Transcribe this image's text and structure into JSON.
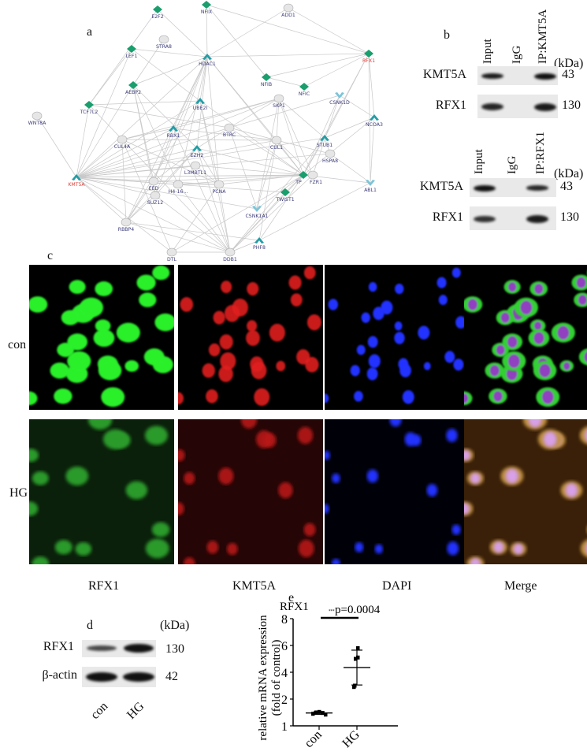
{
  "panel_a": {
    "label": "a",
    "legend_colors": {
      "transcription_factor": "#1a9e6e",
      "up": "#1f9ea8",
      "down": "#7cc4d8",
      "other": "#e6e6e6",
      "highlight_label": "#e0403a",
      "label": "#3b3b7a",
      "edge": "#c8c8c8"
    },
    "nodes": [
      {
        "id": "E2F2",
        "shape": "diamond"
      },
      {
        "id": "NFIX",
        "shape": "diamond"
      },
      {
        "id": "ADD1",
        "shape": "ellipse"
      },
      {
        "id": "STRA8",
        "shape": "ellipse"
      },
      {
        "id": "LEF1",
        "shape": "diamond"
      },
      {
        "id": "HDAC1",
        "shape": "chevron-up"
      },
      {
        "id": "RFX1",
        "shape": "diamond",
        "highlight": true
      },
      {
        "id": "NFIB",
        "shape": "diamond"
      },
      {
        "id": "NFIC",
        "shape": "diamond"
      },
      {
        "id": "AEBP2",
        "shape": "diamond"
      },
      {
        "id": "CSNK1D",
        "shape": "chevron-down"
      },
      {
        "id": "UBE2I",
        "shape": "chevron-up"
      },
      {
        "id": "TCF7L2",
        "shape": "diamond"
      },
      {
        "id": "WNT8A",
        "shape": "ellipse"
      },
      {
        "id": "NCOA3",
        "shape": "chevron-up"
      },
      {
        "id": "SKP1",
        "shape": "ellipse"
      },
      {
        "id": "RBX1",
        "shape": "chevron-up"
      },
      {
        "id": "BTRC",
        "shape": "ellipse"
      },
      {
        "id": "CUL4A",
        "shape": "ellipse"
      },
      {
        "id": "STUB1",
        "shape": "chevron-up"
      },
      {
        "id": "CUL1",
        "shape": "ellipse"
      },
      {
        "id": "EZH2",
        "shape": "chevron-up"
      },
      {
        "id": "HSPA8",
        "shape": "ellipse"
      },
      {
        "id": "L3MBTL1",
        "shape": "ellipse"
      },
      {
        "id": "KMT5A",
        "shape": "chevron-up",
        "highlight": true
      },
      {
        "id": "TP",
        "shape": "diamond"
      },
      {
        "id": "FZR1",
        "shape": "ellipse"
      },
      {
        "id": "ABL1",
        "shape": "chevron-down"
      },
      {
        "id": "EED",
        "shape": "ellipse"
      },
      {
        "id": "H4-16...",
        "shape": "ellipse"
      },
      {
        "id": "PCNA",
        "shape": "ellipse"
      },
      {
        "id": "SUZ12",
        "shape": "ellipse"
      },
      {
        "id": "TWIST1",
        "shape": "diamond"
      },
      {
        "id": "CSNK1A1",
        "shape": "chevron-down"
      },
      {
        "id": "RBBP4",
        "shape": "ellipse"
      },
      {
        "id": "PHF8",
        "shape": "chevron-up"
      },
      {
        "id": "DTL",
        "shape": "ellipse"
      },
      {
        "id": "DDB1",
        "shape": "ellipse"
      }
    ],
    "edges": [
      [
        "KMT5A",
        "WNT8A"
      ],
      [
        "KMT5A",
        "TCF7L2"
      ],
      [
        "KMT5A",
        "LEF1"
      ],
      [
        "KMT5A",
        "AEBP2"
      ],
      [
        "KMT5A",
        "CUL4A"
      ],
      [
        "KMT5A",
        "RBX1"
      ],
      [
        "KMT5A",
        "UBE2I"
      ],
      [
        "KMT5A",
        "EZH2"
      ],
      [
        "KMT5A",
        "L3MBTL1"
      ],
      [
        "KMT5A",
        "EED"
      ],
      [
        "KMT5A",
        "H4-16..."
      ],
      [
        "KMT5A",
        "PCNA"
      ],
      [
        "KMT5A",
        "SUZ12"
      ],
      [
        "KMT5A",
        "RBBP4"
      ],
      [
        "KMT5A",
        "DTL"
      ],
      [
        "KMT5A",
        "DDB1"
      ],
      [
        "KMT5A",
        "TP"
      ],
      [
        "KMT5A",
        "FZR1"
      ],
      [
        "KMT5A",
        "CUL1"
      ],
      [
        "KMT5A",
        "SKP1"
      ],
      [
        "KMT5A",
        "BTRC"
      ],
      [
        "KMT5A",
        "HDAC1"
      ],
      [
        "KMT5A",
        "CSNK1A1"
      ],
      [
        "KMT5A",
        "TWIST1"
      ],
      [
        "KMT5A",
        "HSPA8"
      ],
      [
        "KMT5A",
        "STUB1"
      ],
      [
        "E2F2",
        "HDAC1"
      ],
      [
        "E2F2",
        "TCF7L2"
      ],
      [
        "NFIX",
        "HDAC1"
      ],
      [
        "NFIX",
        "RFX1"
      ],
      [
        "NFIX",
        "NFIB"
      ],
      [
        "ADD1",
        "HDAC1"
      ],
      [
        "ADD1",
        "RFX1"
      ],
      [
        "STRA8",
        "AEBP2"
      ],
      [
        "LEF1",
        "HDAC1"
      ],
      [
        "LEF1",
        "UBE2I"
      ],
      [
        "LEF1",
        "TCF7L2"
      ],
      [
        "RFX1",
        "HDAC1"
      ],
      [
        "RFX1",
        "NFIB"
      ],
      [
        "RFX1",
        "NFIC"
      ],
      [
        "RFX1",
        "NCOA3"
      ],
      [
        "RFX1",
        "STUB1"
      ],
      [
        "RFX1",
        "ABL1"
      ],
      [
        "RFX1",
        "TP"
      ],
      [
        "NFIB",
        "NFIC"
      ],
      [
        "AEBP2",
        "HDAC1"
      ],
      [
        "AEBP2",
        "EED"
      ],
      [
        "AEBP2",
        "SUZ12"
      ],
      [
        "AEBP2",
        "EZH2"
      ],
      [
        "AEBP2",
        "H4-16..."
      ],
      [
        "TCF7L2",
        "CUL4A"
      ],
      [
        "TCF7L2",
        "UBE2I"
      ],
      [
        "TCF7L2",
        "BTRC"
      ],
      [
        "HDAC1",
        "RBX1"
      ],
      [
        "HDAC1",
        "EZH2"
      ],
      [
        "HDAC1",
        "UBE2I"
      ],
      [
        "HDAC1",
        "TP"
      ],
      [
        "HDAC1",
        "EED"
      ],
      [
        "HDAC1",
        "PCNA"
      ],
      [
        "HDAC1",
        "H4-16..."
      ],
      [
        "HDAC1",
        "SUZ12"
      ],
      [
        "HDAC1",
        "RBBP4"
      ],
      [
        "HDAC1",
        "CUL1"
      ],
      [
        "CSNK1D",
        "BTRC"
      ],
      [
        "CSNK1D",
        "TP"
      ],
      [
        "CSNK1D",
        "NCOA3"
      ],
      [
        "CSNK1D",
        "FZR1"
      ],
      [
        "NCOA3",
        "STUB1"
      ],
      [
        "NCOA3",
        "ABL1"
      ],
      [
        "NCOA3",
        "TP"
      ],
      [
        "SKP1",
        "CUL1"
      ],
      [
        "SKP1",
        "BTRC"
      ],
      [
        "SKP1",
        "RBX1"
      ],
      [
        "SKP1",
        "STUB1"
      ],
      [
        "SKP1",
        "FZR1"
      ],
      [
        "SKP1",
        "TP"
      ],
      [
        "SKP1",
        "CSNK1A1"
      ],
      [
        "SKP1",
        "CUL4A"
      ],
      [
        "RBX1",
        "CUL1"
      ],
      [
        "RBX1",
        "CUL4A"
      ],
      [
        "RBX1",
        "DDB1"
      ],
      [
        "RBX1",
        "EED"
      ],
      [
        "BTRC",
        "CUL1"
      ],
      [
        "BTRC",
        "CSNK1A1"
      ],
      [
        "BTRC",
        "TP"
      ],
      [
        "BTRC",
        "EZH2"
      ],
      [
        "CUL4A",
        "DDB1"
      ],
      [
        "CUL4A",
        "RBBP4"
      ],
      [
        "CUL4A",
        "PCNA"
      ],
      [
        "CUL4A",
        "DTL"
      ],
      [
        "CUL4A",
        "CUL1"
      ],
      [
        "CUL1",
        "FZR1"
      ],
      [
        "CUL1",
        "TP"
      ],
      [
        "CUL1",
        "HSPA8"
      ],
      [
        "CUL1",
        "CSNK1A1"
      ],
      [
        "CUL1",
        "PHF8"
      ],
      [
        "STUB1",
        "HSPA8"
      ],
      [
        "STUB1",
        "TP"
      ],
      [
        "STUB1",
        "DDB1"
      ],
      [
        "EZH2",
        "EED"
      ],
      [
        "EZH2",
        "SUZ12"
      ],
      [
        "EZH2",
        "RBBP4"
      ],
      [
        "EZH2",
        "PCNA"
      ],
      [
        "EZH2",
        "TP"
      ],
      [
        "EZH2",
        "DDB1"
      ],
      [
        "L3MBTL1",
        "PCNA"
      ],
      [
        "L3MBTL1",
        "TP"
      ],
      [
        "EED",
        "SUZ12"
      ],
      [
        "EED",
        "RBBP4"
      ],
      [
        "EED",
        "TP"
      ],
      [
        "H4-16...",
        "PCNA"
      ],
      [
        "H4-16...",
        "DDB1"
      ],
      [
        "H4-16...",
        "FZR1"
      ],
      [
        "PCNA",
        "DTL"
      ],
      [
        "PCNA",
        "DDB1"
      ],
      [
        "PCNA",
        "TP"
      ],
      [
        "SUZ12",
        "RBBP4"
      ],
      [
        "SUZ12",
        "DDB1"
      ],
      [
        "RBBP4",
        "DDB1"
      ],
      [
        "RBBP4",
        "PHF8"
      ],
      [
        "DTL",
        "DDB1"
      ],
      [
        "DTL",
        "TP"
      ],
      [
        "TWIST1",
        "DDB1"
      ],
      [
        "TWIST1",
        "TP"
      ],
      [
        "PHF8",
        "DDB1"
      ],
      [
        "PHF8",
        "ABL1"
      ],
      [
        "PHF8",
        "TP"
      ],
      [
        "ABL1",
        "TP"
      ],
      [
        "ABL1",
        "HSPA8"
      ],
      [
        "CSNK1A1",
        "TP"
      ],
      [
        "DDB1",
        "TP"
      ],
      [
        "DDB1",
        "FZR1"
      ],
      [
        "UBE2I",
        "DDB1"
      ],
      [
        "UBE2I",
        "PCNA"
      ],
      [
        "UBE2I",
        "TP"
      ],
      [
        "UBE2I",
        "RBBP4"
      ]
    ]
  },
  "panel_b": {
    "label": "b",
    "top": {
      "lanes": [
        "Input",
        "IgG",
        "IP:KMT5A"
      ],
      "kda_label": "(kDa)",
      "rows": [
        {
          "protein": "KMT5A",
          "kda": "43",
          "bands": [
            0.9,
            0,
            1.0
          ]
        },
        {
          "protein": "RFX1",
          "kda": "130",
          "bands": [
            0.8,
            0,
            0.9
          ]
        }
      ]
    },
    "bottom": {
      "lanes": [
        "Input",
        "IgG",
        "IP:RFX1"
      ],
      "kda_label": "(kDa)",
      "rows": [
        {
          "protein": "KMT5A",
          "kda": "43",
          "bands": [
            1.0,
            0,
            0.8
          ]
        },
        {
          "protein": "RFX1",
          "kda": "130",
          "bands": [
            0.7,
            0,
            0.9
          ]
        }
      ]
    }
  },
  "panel_c": {
    "label": "c",
    "rows": [
      "con",
      "HG"
    ],
    "columns": [
      {
        "label": "RFX1",
        "color": "#22e022"
      },
      {
        "label": "KMT5A",
        "color": "#e82020"
      },
      {
        "label": "DAPI",
        "color": "#2030ff"
      },
      {
        "label": "Merge",
        "color": "#a0e040"
      }
    ]
  },
  "panel_d": {
    "label": "d",
    "kda_label": "(kDa)",
    "lanes": [
      "con",
      "HG"
    ],
    "rows": [
      {
        "protein": "RFX1",
        "kda": "130",
        "bands": [
          0.7,
          1.0
        ]
      },
      {
        "protein": "β-actin",
        "kda": "42",
        "bands": [
          1.0,
          1.0
        ]
      }
    ]
  },
  "chart_data": {
    "type": "scatter",
    "label": "e",
    "title": "RFX1",
    "ylabel": "relative mRNA expression",
    "ylabel2": "(fold of control)",
    "categories": [
      "con",
      "HG"
    ],
    "yticks": [
      1,
      2,
      4,
      6,
      8
    ],
    "ylim": [
      1,
      8
    ],
    "series": [
      {
        "category": "con",
        "values": [
          1.45,
          1.5,
          1.52,
          1.48,
          1.42
        ],
        "mean": 1.48,
        "sd": [
          1.43,
          1.53
        ]
      },
      {
        "category": "HG",
        "values": [
          5.8,
          5.0,
          5.1,
          3.0,
          2.9
        ],
        "mean": 4.35,
        "sd": [
          3.05,
          5.65
        ]
      }
    ],
    "annotation": {
      "stars": "***",
      "text": "p=0.0004"
    }
  }
}
